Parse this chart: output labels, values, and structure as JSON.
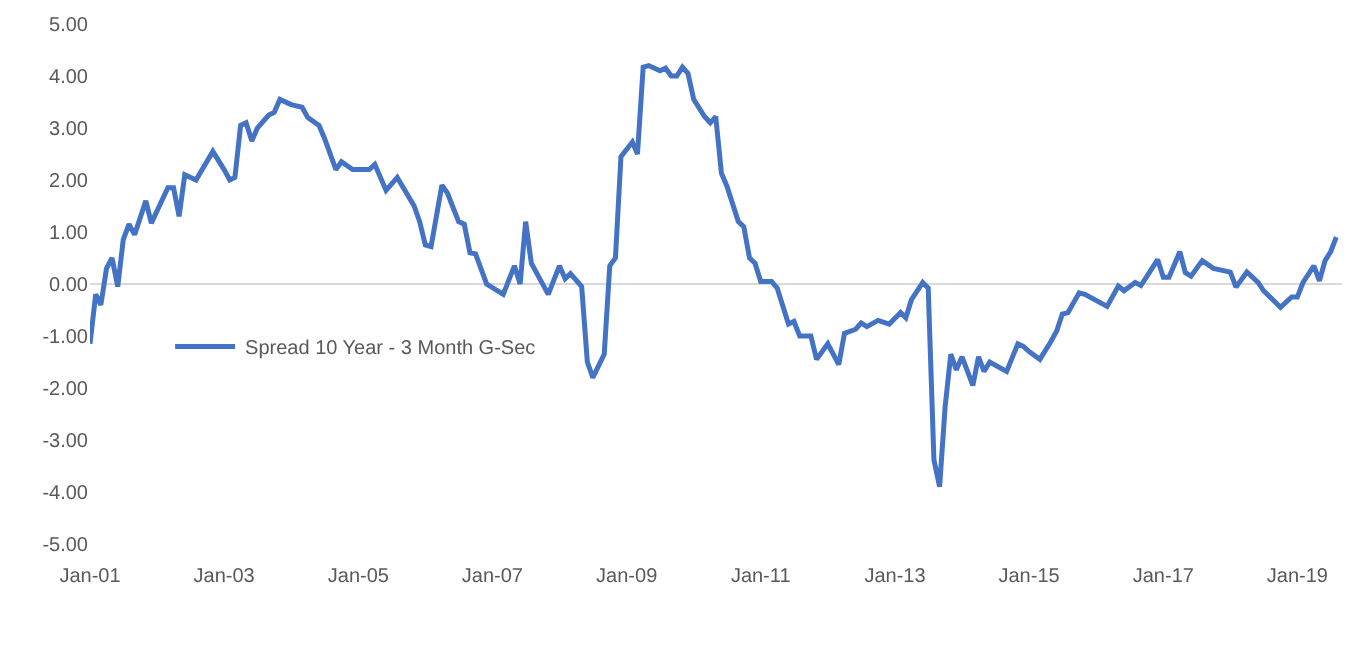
{
  "chart_data": {
    "type": "line",
    "x": [
      "2001-01",
      "2001-02",
      "2001-03",
      "2001-04",
      "2001-05",
      "2001-06",
      "2001-07",
      "2001-08",
      "2001-09",
      "2001-11",
      "2001-12",
      "2002-03",
      "2002-04",
      "2002-05",
      "2002-06",
      "2002-08",
      "2002-11",
      "2003-01",
      "2003-02",
      "2003-03",
      "2003-04",
      "2003-05",
      "2003-06",
      "2003-07",
      "2003-09",
      "2003-10",
      "2003-11",
      "2004-01",
      "2004-03",
      "2004-04",
      "2004-06",
      "2004-07",
      "2004-09",
      "2004-10",
      "2004-12",
      "2005-03",
      "2005-04",
      "2005-06",
      "2005-08",
      "2005-11",
      "2005-12",
      "2006-01",
      "2006-02",
      "2006-04",
      "2006-05",
      "2006-07",
      "2006-08",
      "2006-09",
      "2006-10",
      "2006-12",
      "2007-03",
      "2007-05",
      "2007-06",
      "2007-07",
      "2007-08",
      "2007-11",
      "2008-01",
      "2008-02",
      "2008-03",
      "2008-05",
      "2008-06",
      "2008-07",
      "2008-09",
      "2008-10",
      "2008-11",
      "2008-12",
      "2009-02",
      "2009-03",
      "2009-04",
      "2009-05",
      "2009-07",
      "2009-08",
      "2009-09",
      "2009-10",
      "2009-11",
      "2009-12",
      "2010-01",
      "2010-03",
      "2010-04",
      "2010-05",
      "2010-06",
      "2010-07",
      "2010-09",
      "2010-10",
      "2010-11",
      "2010-12",
      "2011-01",
      "2011-03",
      "2011-04",
      "2011-06",
      "2011-07",
      "2011-08",
      "2011-10",
      "2011-11",
      "2012-01",
      "2012-03",
      "2012-04",
      "2012-06",
      "2012-07",
      "2012-08",
      "2012-10",
      "2012-12",
      "2013-02",
      "2013-03",
      "2013-04",
      "2013-06",
      "2013-07",
      "2013-08",
      "2013-09",
      "2013-10",
      "2013-11",
      "2013-12",
      "2014-01",
      "2014-03",
      "2014-04",
      "2014-05",
      "2014-06",
      "2014-09",
      "2014-11",
      "2014-12",
      "2015-01",
      "2015-03",
      "2015-05",
      "2015-06",
      "2015-07",
      "2015-08",
      "2015-10",
      "2015-11",
      "2016-03",
      "2016-05",
      "2016-06",
      "2016-08",
      "2016-09",
      "2016-10",
      "2016-12",
      "2017-01",
      "2017-02",
      "2017-04",
      "2017-05",
      "2017-06",
      "2017-08",
      "2017-10",
      "2018-01",
      "2018-02",
      "2018-04",
      "2018-06",
      "2018-07",
      "2018-10",
      "2018-12",
      "2019-01",
      "2019-02",
      "2019-04",
      "2019-05",
      "2019-06",
      "2019-07",
      "2019-08"
    ],
    "series": [
      {
        "name": "Spread 10 Year - 3 Month G-Sec",
        "color": "#4472c4",
        "values": [
          -1.15,
          -0.2,
          -0.4,
          0.3,
          0.5,
          -0.05,
          0.85,
          1.15,
          0.95,
          1.6,
          1.17,
          1.85,
          1.85,
          1.3,
          2.1,
          2.0,
          2.55,
          2.2,
          2.0,
          2.05,
          3.05,
          3.1,
          2.75,
          3.0,
          3.25,
          3.3,
          3.55,
          3.45,
          3.4,
          3.2,
          3.05,
          2.8,
          2.2,
          2.35,
          2.2,
          2.2,
          2.3,
          1.8,
          2.05,
          1.5,
          1.2,
          0.75,
          0.72,
          1.9,
          1.75,
          1.2,
          1.15,
          0.6,
          0.58,
          0.0,
          -0.2,
          0.35,
          0.0,
          1.2,
          0.4,
          -0.2,
          0.35,
          0.1,
          0.2,
          -0.05,
          -1.5,
          -1.8,
          -1.35,
          0.35,
          0.5,
          2.45,
          2.73,
          2.5,
          4.17,
          4.2,
          4.1,
          4.15,
          4.0,
          4.0,
          4.17,
          4.05,
          3.55,
          3.22,
          3.1,
          3.22,
          2.13,
          1.88,
          1.2,
          1.1,
          0.5,
          0.4,
          0.05,
          0.05,
          -0.08,
          -0.77,
          -0.72,
          -1.0,
          -1.0,
          -1.45,
          -1.15,
          -1.55,
          -0.95,
          -0.87,
          -0.75,
          -0.82,
          -0.7,
          -0.77,
          -0.55,
          -0.65,
          -0.3,
          0.03,
          -0.08,
          -3.38,
          -3.9,
          -2.36,
          -1.35,
          -1.65,
          -1.4,
          -1.95,
          -1.4,
          -1.68,
          -1.5,
          -1.68,
          -1.15,
          -1.2,
          -1.3,
          -1.45,
          -1.1,
          -0.9,
          -0.58,
          -0.55,
          -0.17,
          -0.2,
          -0.43,
          -0.04,
          -0.13,
          0.03,
          -0.03,
          0.13,
          0.47,
          0.13,
          0.13,
          0.62,
          0.22,
          0.15,
          0.45,
          0.3,
          0.23,
          -0.06,
          0.23,
          0.03,
          -0.13,
          -0.45,
          -0.25,
          -0.25,
          0.03,
          0.35,
          0.06,
          0.45,
          0.62,
          0.9
        ]
      }
    ],
    "xlim": [
      "2001-01",
      "2019-09"
    ],
    "xticks": [
      {
        "value": "2001-01",
        "label": "Jan-01"
      },
      {
        "value": "2003-01",
        "label": "Jan-03"
      },
      {
        "value": "2005-01",
        "label": "Jan-05"
      },
      {
        "value": "2007-01",
        "label": "Jan-07"
      },
      {
        "value": "2009-01",
        "label": "Jan-09"
      },
      {
        "value": "2011-01",
        "label": "Jan-11"
      },
      {
        "value": "2013-01",
        "label": "Jan-13"
      },
      {
        "value": "2015-01",
        "label": "Jan-15"
      },
      {
        "value": "2017-01",
        "label": "Jan-17"
      },
      {
        "value": "2019-01",
        "label": "Jan-19"
      }
    ],
    "ylim": [
      -5,
      5
    ],
    "yticks": [
      {
        "value": -5,
        "label": "-5.00"
      },
      {
        "value": -4,
        "label": "-4.00"
      },
      {
        "value": -3,
        "label": "-3.00"
      },
      {
        "value": -2,
        "label": "-2.00"
      },
      {
        "value": -1,
        "label": "-1.00"
      },
      {
        "value": 0,
        "label": "0.00"
      },
      {
        "value": 1,
        "label": "1.00"
      },
      {
        "value": 2,
        "label": "2.00"
      },
      {
        "value": 3,
        "label": "3.00"
      },
      {
        "value": 4,
        "label": "4.00"
      },
      {
        "value": 5,
        "label": "5.00"
      }
    ],
    "legend": "left",
    "line_style": "solid"
  }
}
